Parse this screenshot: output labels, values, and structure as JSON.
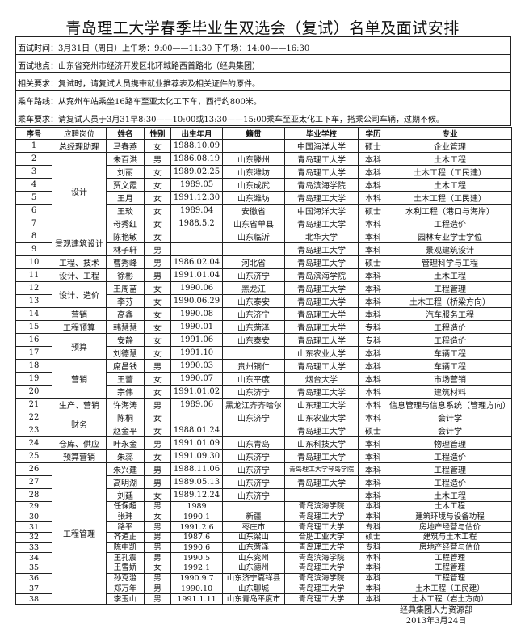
{
  "title": "青岛理工大学春季毕业生双选会（复试）名单及面试安排",
  "info": [
    "面试时间：3月31日（周日）上午场：9:00——11:30 下午场：14:00——16:30",
    "面试地点：山东省兖州市经济开发区北环城路西首路北（经典集团）",
    "相关要求：复试时，请复试人员携带就业推荐表及相关证件的原件。",
    "乘车路线：从兖州车站乘坐16路车至亚太化工下车，西行约800米。",
    "乘车要求：请复试人员于3月31早8:30——10:00或13:30——15:00乘车至亚太化工下车，搭乘公司车辆，过期不候。"
  ],
  "headers": [
    "序号",
    "应聘岗位",
    "姓名",
    "性别",
    "出生年月",
    "籍贯",
    "毕业学校",
    "学历",
    "专业"
  ],
  "rows": [
    [
      "1",
      "总经理助理",
      "马春燕",
      "女",
      "1988.10.09",
      "",
      "中国海洋大学",
      "硕士",
      "企业管理"
    ],
    [
      "2",
      "设计",
      "朱百洪",
      "男",
      "1986.08.19",
      "山东滕州",
      "青岛理工大学",
      "本科",
      "土木工程"
    ],
    [
      "3",
      "设计",
      "刘丽",
      "女",
      "1989.02.25",
      "山东潍坊",
      "青岛理工大学",
      "本科",
      "土木工程（工民建）"
    ],
    [
      "4",
      "设计",
      "贾文霞",
      "女",
      "1989.05",
      "山东成武",
      "青岛滨海学院",
      "本科",
      "土木工程"
    ],
    [
      "5",
      "设计",
      "王月",
      "女",
      "1991.12.30",
      "山东潍坊",
      "青岛理工大学",
      "本科",
      "土木工程（工民建）"
    ],
    [
      "6",
      "设计",
      "王琰",
      "女",
      "1989.04",
      "安徽省",
      "中国海洋大学",
      "硕士",
      "水利工程（港口与海岸）"
    ],
    [
      "7",
      "设计",
      "母秀红",
      "女",
      "1988.5.2",
      "山东省单县",
      "青岛理工大学",
      "本科",
      "工程造价"
    ],
    [
      "8",
      "景观建筑设计",
      "陈艳敏",
      "女",
      "",
      "山东临沂",
      "北华大学",
      "本科",
      "园林专业学士学位"
    ],
    [
      "9",
      "景观建筑设计",
      "林子轩",
      "男",
      "",
      "",
      "青岛理工大学",
      "本科",
      "景观建筑设计"
    ],
    [
      "10",
      "工程、技术",
      "曹秀峰",
      "男",
      "1986.02.04",
      "河北省",
      "青岛理工大学",
      "硕士",
      "管理科学与工程"
    ],
    [
      "11",
      "设计、工程",
      "徐彬",
      "男",
      "1991.01.04",
      "山东济宁",
      "青岛滨海学院",
      "本科",
      "土木工程"
    ],
    [
      "12",
      "设计、造价",
      "王周苗",
      "女",
      "1990.06",
      "黑龙江",
      "青岛理工大学",
      "本科",
      "工程管理"
    ],
    [
      "13",
      "设计、造价",
      "李芬",
      "女",
      "1990.06.29",
      "山东泰安",
      "青岛理工大学",
      "本科",
      "土木工程（桥梁方向）"
    ],
    [
      "14",
      "营销",
      "高鑫",
      "女",
      "1990.08",
      "山东济宁",
      "青岛理工大学",
      "本科",
      "汽车服务工程"
    ],
    [
      "15",
      "工程预算",
      "韩慧慧",
      "女",
      "1990.01",
      "山东菏泽",
      "青岛理工大学",
      "专科",
      "工程造价"
    ],
    [
      "16",
      "预算",
      "安静",
      "女",
      "1991.06",
      "山东泰安",
      "青岛理工大学",
      "专科",
      "工程造价"
    ],
    [
      "17",
      "预算",
      "刘德慧",
      "女",
      "1991.10",
      "",
      "山东农业大学",
      "本科",
      "车辆工程"
    ],
    [
      "18",
      "营销",
      "席昌钱",
      "男",
      "1990.03",
      "贵州铜仁",
      "青岛理工大学",
      "本科",
      "车辆工程"
    ],
    [
      "19",
      "营销",
      "王蕾",
      "女",
      "1990.07",
      "山东平度",
      "烟台大学",
      "本科",
      "市场营销"
    ],
    [
      "20",
      "营销",
      "宗伟",
      "女",
      "1991.01.02",
      "山东济宁",
      "青岛理工大学",
      "本科",
      "建筑材料"
    ],
    [
      "21",
      "生产、营销",
      "许海涛",
      "男",
      "1989.06",
      "黑龙江齐齐哈尔",
      "山东理工大学",
      "本科",
      "信息管理与信息系统（管理方向）"
    ],
    [
      "22",
      "财务",
      "陈桐",
      "女",
      "",
      "山东济宁",
      "山东农业大学",
      "本科",
      "会计学"
    ],
    [
      "23",
      "财务",
      "赵金平",
      "女",
      "1988.01.24",
      "",
      "青岛理工大学",
      "硕士",
      "会计学"
    ],
    [
      "24",
      "仓库、供应",
      "叶永金",
      "男",
      "1991.01.09",
      "山东青岛",
      "山东科技大学",
      "本科",
      "物理管理"
    ],
    [
      "25",
      "预算营销",
      "朱蕊",
      "女",
      "1991.09.30",
      "山东济宁",
      "青岛理工大学",
      "本科",
      "工程造价"
    ],
    [
      "26",
      "工程管理",
      "朱兴建",
      "男",
      "1988.11.06",
      "山东济宁",
      "青岛理工大学琴岛学院",
      "本科",
      "工程管理"
    ],
    [
      "27",
      "工程管理",
      "高明湖",
      "男",
      "1989.05.13",
      "山东济宁",
      "青岛理工大学",
      "本科",
      "工程造价"
    ],
    [
      "28",
      "工程管理",
      "刘廷",
      "女",
      "1989.12.24",
      "山东济宁",
      "",
      "本科",
      "土木工程"
    ],
    [
      "29",
      "工程管理",
      "任保超",
      "男",
      "1989",
      "",
      "青岛滨海学院",
      "本科",
      "土木工程"
    ],
    [
      "30",
      "工程管理",
      "张玮",
      "女",
      "1990.1",
      "新疆",
      "青岛理工大学",
      "本科",
      "建筑环境与设备功程"
    ],
    [
      "31",
      "工程管理",
      "路平",
      "男",
      "1991.2.6",
      "枣庄市",
      "青岛理工大学",
      "专科",
      "房地产经营与估价"
    ],
    [
      "32",
      "工程管理",
      "齐道正",
      "男",
      "1987.6",
      "山东梁山",
      "合肥工业大学",
      "硕士",
      "建筑与土木工程"
    ],
    [
      "33",
      "工程管理",
      "陈中凯",
      "男",
      "1990.6",
      "山东菏泽",
      "青岛理工大学",
      "专科",
      "房地产经营与估价"
    ],
    [
      "34",
      "工程管理",
      "王孔震",
      "男",
      "1990.5",
      "山东兖州",
      "青岛滨海学院",
      "本科",
      "工程管理"
    ],
    [
      "35",
      "工程管理",
      "王雪娇",
      "女",
      "1992.1",
      "山东德州",
      "青岛理工大学",
      "本科",
      "工程管理"
    ],
    [
      "36",
      "工程管理",
      "孙克滥",
      "男",
      "1990.9.7",
      "山东济宁嘉祥县",
      "青岛滨海学院",
      "本科",
      "工程管理"
    ],
    [
      "37",
      "工程管理",
      "郑万年",
      "男",
      "1990.10",
      "山东聊城",
      "青岛理工大学",
      "本科",
      "土木工程（工民建）"
    ],
    [
      "38",
      "工程管理",
      "李玉山",
      "男",
      "1991.1.11",
      "山东青岛平度市",
      "青岛理工大学",
      "本科",
      "土木工程（岩土方向）"
    ]
  ],
  "footer": {
    "department": "经典集团人力资源部",
    "date": "2013年3月24日"
  }
}
